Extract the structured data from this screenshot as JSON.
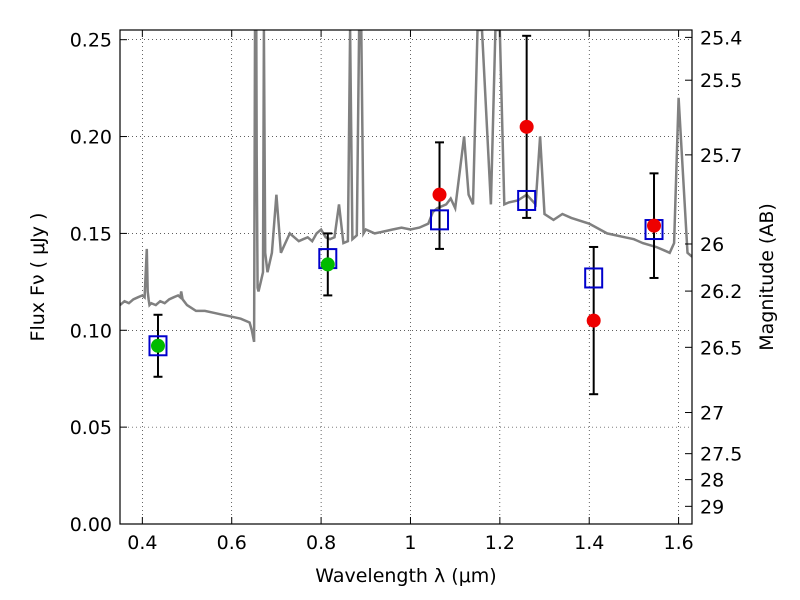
{
  "chart_data": {
    "type": "scatter",
    "xlabel": "Wavelength  λ (μm)",
    "ylabel": "Flux  Fν  ( μJy )",
    "y2label": "Magnitude (AB)",
    "xlim": [
      0.35,
      1.63
    ],
    "ylim": [
      0.0,
      0.255
    ],
    "grid": true,
    "x_ticks": [
      {
        "value": 0.4,
        "label": "0.4"
      },
      {
        "value": 0.6,
        "label": "0.6"
      },
      {
        "value": 0.8,
        "label": "0.8"
      },
      {
        "value": 1.0,
        "label": "1"
      },
      {
        "value": 1.2,
        "label": "1.2"
      },
      {
        "value": 1.4,
        "label": "1.4"
      },
      {
        "value": 1.6,
        "label": "1.6"
      }
    ],
    "y_ticks": [
      {
        "value": 0.0,
        "label": "0.00"
      },
      {
        "value": 0.05,
        "label": "0.05"
      },
      {
        "value": 0.1,
        "label": "0.10"
      },
      {
        "value": 0.15,
        "label": "0.15"
      },
      {
        "value": 0.2,
        "label": "0.20"
      },
      {
        "value": 0.25,
        "label": "0.25"
      }
    ],
    "y2_ticks": [
      {
        "value": 25.4,
        "label": "25.4"
      },
      {
        "value": 25.5,
        "label": "25.5"
      },
      {
        "value": 25.7,
        "label": "25.7"
      },
      {
        "value": 26,
        "label": "26"
      },
      {
        "value": 26.2,
        "label": "26.2"
      },
      {
        "value": 26.5,
        "label": "26.5"
      },
      {
        "value": 27,
        "label": "27"
      },
      {
        "value": 27.5,
        "label": "27.5"
      },
      {
        "value": 28,
        "label": "28"
      },
      {
        "value": 29,
        "label": "29"
      }
    ],
    "model_spectrum": {
      "color": "#808080",
      "x": [
        0.35,
        0.36,
        0.37,
        0.38,
        0.39,
        0.4,
        0.405,
        0.41,
        0.412,
        0.414,
        0.416,
        0.42,
        0.43,
        0.44,
        0.45,
        0.46,
        0.47,
        0.48,
        0.485,
        0.487,
        0.49,
        0.5,
        0.52,
        0.54,
        0.56,
        0.58,
        0.6,
        0.62,
        0.64,
        0.645,
        0.65,
        0.652,
        0.655,
        0.656,
        0.658,
        0.66,
        0.665,
        0.67,
        0.672,
        0.675,
        0.68,
        0.69,
        0.7,
        0.71,
        0.72,
        0.73,
        0.74,
        0.75,
        0.76,
        0.77,
        0.78,
        0.79,
        0.8,
        0.81,
        0.82,
        0.83,
        0.84,
        0.85,
        0.86,
        0.865,
        0.87,
        0.875,
        0.88,
        0.885,
        0.89,
        0.895,
        0.9,
        0.92,
        0.94,
        0.96,
        0.98,
        1.0,
        1.02,
        1.04,
        1.05,
        1.06,
        1.08,
        1.09,
        1.1,
        1.12,
        1.13,
        1.14,
        1.15,
        1.155,
        1.16,
        1.18,
        1.19,
        1.2,
        1.21,
        1.22,
        1.24,
        1.26,
        1.28,
        1.29,
        1.3,
        1.32,
        1.34,
        1.36,
        1.4,
        1.44,
        1.48,
        1.5,
        1.52,
        1.55,
        1.57,
        1.58,
        1.59,
        1.6,
        1.62,
        1.63
      ],
      "y": [
        0.113,
        0.115,
        0.114,
        0.116,
        0.117,
        0.118,
        0.117,
        0.142,
        0.12,
        0.116,
        0.113,
        0.114,
        0.113,
        0.115,
        0.114,
        0.116,
        0.117,
        0.118,
        0.117,
        0.12,
        0.116,
        0.113,
        0.11,
        0.11,
        0.109,
        0.108,
        0.107,
        0.106,
        0.104,
        0.1,
        0.094,
        0.255,
        0.255,
        0.19,
        0.122,
        0.12,
        0.125,
        0.13,
        0.255,
        0.14,
        0.13,
        0.14,
        0.17,
        0.14,
        0.145,
        0.15,
        0.148,
        0.146,
        0.147,
        0.148,
        0.146,
        0.15,
        0.152,
        0.148,
        0.147,
        0.148,
        0.165,
        0.145,
        0.146,
        0.255,
        0.147,
        0.148,
        0.149,
        0.255,
        0.255,
        0.15,
        0.152,
        0.15,
        0.151,
        0.152,
        0.153,
        0.152,
        0.153,
        0.155,
        0.161,
        0.163,
        0.165,
        0.168,
        0.163,
        0.2,
        0.17,
        0.165,
        0.255,
        0.255,
        0.255,
        0.165,
        0.255,
        0.255,
        0.165,
        0.166,
        0.167,
        0.17,
        0.165,
        0.2,
        0.16,
        0.157,
        0.16,
        0.158,
        0.155,
        0.15,
        0.148,
        0.147,
        0.145,
        0.143,
        0.141,
        0.14,
        0.145,
        0.22,
        0.14,
        0.138
      ]
    },
    "series": [
      {
        "marker": "square",
        "color": "#0000cc",
        "x": [
          0.435,
          0.815,
          1.065,
          1.26,
          1.41,
          1.545
        ],
        "y": [
          0.092,
          0.137,
          0.157,
          0.167,
          0.127,
          0.152
        ]
      },
      {
        "marker": "circle",
        "color": "#00bb00",
        "x": [
          0.435,
          0.815
        ],
        "y": [
          0.092,
          0.134
        ]
      },
      {
        "marker": "circle",
        "color": "#ee0000",
        "x": [
          1.065,
          1.26,
          1.41,
          1.545
        ],
        "y": [
          0.17,
          0.205,
          0.105,
          0.154
        ]
      }
    ],
    "error_bars": {
      "color": "#000000",
      "x": [
        0.435,
        0.815,
        1.065,
        1.26,
        1.41,
        1.545
      ],
      "y_low": [
        0.076,
        0.118,
        0.142,
        0.158,
        0.067,
        0.127
      ],
      "y_high": [
        0.108,
        0.15,
        0.197,
        0.252,
        0.143,
        0.181
      ]
    }
  }
}
